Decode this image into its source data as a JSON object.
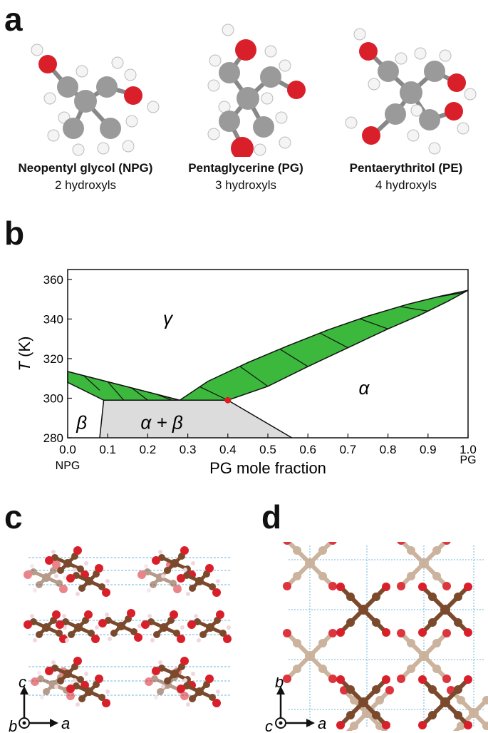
{
  "panels": {
    "a": "a",
    "b": "b",
    "c": "c",
    "d": "d"
  },
  "molecules": [
    {
      "name": "Neopentyl glycol (NPG)",
      "subtitle": "2 hydroxyls"
    },
    {
      "name": "Pentaglycerine (PG)",
      "subtitle": "3 hydroxyls"
    },
    {
      "name": "Pentaerythritol (PE)",
      "subtitle": "4 hydroxyls"
    }
  ],
  "colors": {
    "carbon": "#9a9a9a",
    "oxygen": "#d9202a",
    "hydrogen": "#f4f4f4",
    "two_phase": "#3cb83c",
    "alpha_beta_region": "#dcdcdc",
    "crystal_carbon": "#7b4a2c",
    "crystal_carbon_faded": "#c7ab93",
    "crystal_hbond": "#4aa3d6"
  },
  "chart_data": {
    "type": "area",
    "xlabel": "PG mole fraction",
    "ylabel_italic": "T",
    "ylabel_unit": " (K)",
    "xlim": [
      0,
      1
    ],
    "ylim": [
      280,
      365
    ],
    "xticks": [
      "0.0",
      "0.1",
      "0.2",
      "0.3",
      "0.4",
      "0.5",
      "0.6",
      "0.7",
      "0.8",
      "0.9",
      "1.0"
    ],
    "yticks": [
      "280",
      "300",
      "320",
      "340",
      "360"
    ],
    "x_end_labels": {
      "left": "NPG",
      "right": "PG"
    },
    "region_labels": {
      "gamma": "γ",
      "alpha": "α",
      "beta": "β",
      "alpha_beta": "α + β"
    },
    "regions": {
      "gamma_alpha_upper": [
        [
          0.28,
          299
        ],
        [
          0.35,
          308.5
        ],
        [
          0.45,
          318
        ],
        [
          0.55,
          326.5
        ],
        [
          0.65,
          334.5
        ],
        [
          0.75,
          341.5
        ],
        [
          0.85,
          347.5
        ],
        [
          0.93,
          351.5
        ],
        [
          1.0,
          354.5
        ]
      ],
      "gamma_alpha_lower": [
        [
          0.28,
          299
        ],
        [
          0.4,
          299
        ],
        [
          0.5,
          306
        ],
        [
          0.6,
          316
        ],
        [
          0.7,
          325.5
        ],
        [
          0.8,
          335
        ],
        [
          0.88,
          342
        ],
        [
          0.95,
          349
        ],
        [
          1.0,
          354.5
        ]
      ],
      "gamma_beta_upper": [
        [
          0.0,
          313.5
        ],
        [
          0.28,
          299
        ]
      ],
      "gamma_beta_lower": [
        [
          0.0,
          308
        ],
        [
          0.09,
          299
        ],
        [
          0.28,
          299
        ]
      ],
      "eutectoid_T": 299,
      "alpha_beta_region": [
        [
          0.09,
          299
        ],
        [
          0.4,
          299
        ],
        [
          0.56,
          280
        ],
        [
          0.08,
          280
        ]
      ],
      "beta_boundary": [
        [
          0.09,
          299
        ],
        [
          0.08,
          280
        ]
      ],
      "alpha_boundary": [
        [
          0.4,
          299
        ],
        [
          0.56,
          280
        ]
      ],
      "marker": {
        "x": 0.4,
        "y": 299
      }
    }
  },
  "axes_c": {
    "vertical": "c",
    "horizontal": "a",
    "out_of_plane": "b"
  },
  "axes_d": {
    "vertical": "b",
    "horizontal": "a",
    "out_of_plane": "c"
  }
}
